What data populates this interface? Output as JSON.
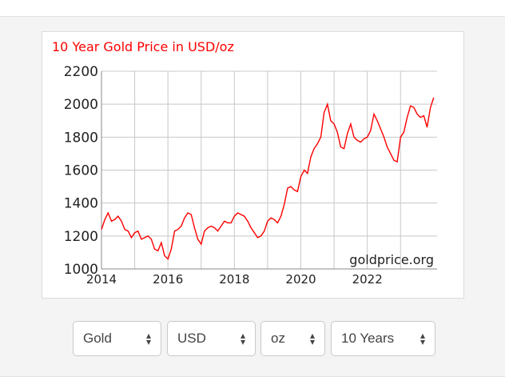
{
  "chart_data": {
    "type": "line",
    "title": "10 Year Gold Price in USD/oz",
    "watermark": "goldprice.org",
    "xlabel": "",
    "ylabel": "",
    "xlim": [
      2014,
      2024.1
    ],
    "ylim": [
      1000,
      2200
    ],
    "x_ticks": [
      "2014",
      "2016",
      "2018",
      "2020",
      "2022"
    ],
    "x_tick_values": [
      2014,
      2016,
      2018,
      2020,
      2022
    ],
    "y_ticks": [
      "1000",
      "1200",
      "1400",
      "1600",
      "1800",
      "2000",
      "2200"
    ],
    "y_tick_values": [
      1000,
      1200,
      1400,
      1600,
      1800,
      2000,
      2200
    ],
    "grid": true,
    "line_color": "#ff0000",
    "series": [
      {
        "x": [
          2014.0,
          2014.1,
          2014.2,
          2014.3,
          2014.4,
          2014.5,
          2014.6,
          2014.7,
          2014.8,
          2014.9,
          2015.0,
          2015.1,
          2015.2,
          2015.3,
          2015.4,
          2015.5,
          2015.6,
          2015.7,
          2015.8,
          2015.9,
          2016.0,
          2016.1,
          2016.2,
          2016.3,
          2016.4,
          2016.5,
          2016.6,
          2016.7,
          2016.8,
          2016.9,
          2017.0,
          2017.1,
          2017.2,
          2017.3,
          2017.4,
          2017.5,
          2017.6,
          2017.7,
          2017.8,
          2017.9,
          2018.0,
          2018.1,
          2018.2,
          2018.3,
          2018.4,
          2018.5,
          2018.6,
          2018.7,
          2018.8,
          2018.9,
          2019.0,
          2019.1,
          2019.2,
          2019.3,
          2019.4,
          2019.5,
          2019.6,
          2019.7,
          2019.8,
          2019.9,
          2020.0,
          2020.1,
          2020.2,
          2020.3,
          2020.4,
          2020.5,
          2020.6,
          2020.7,
          2020.8,
          2020.9,
          2021.0,
          2021.1,
          2021.2,
          2021.3,
          2021.4,
          2021.5,
          2021.6,
          2021.7,
          2021.8,
          2021.9,
          2022.0,
          2022.1,
          2022.2,
          2022.3,
          2022.4,
          2022.5,
          2022.6,
          2022.7,
          2022.8,
          2022.9,
          2023.0,
          2023.1,
          2023.2,
          2023.3,
          2023.4,
          2023.5,
          2023.6,
          2023.7,
          2023.8,
          2023.9,
          2024.0
        ],
        "y": [
          1240,
          1300,
          1340,
          1290,
          1300,
          1320,
          1290,
          1240,
          1230,
          1190,
          1220,
          1230,
          1180,
          1190,
          1200,
          1180,
          1120,
          1110,
          1160,
          1080,
          1060,
          1120,
          1230,
          1240,
          1260,
          1310,
          1340,
          1330,
          1250,
          1180,
          1150,
          1230,
          1250,
          1260,
          1250,
          1230,
          1260,
          1290,
          1280,
          1280,
          1320,
          1340,
          1330,
          1320,
          1290,
          1250,
          1220,
          1190,
          1200,
          1230,
          1290,
          1310,
          1300,
          1280,
          1320,
          1390,
          1490,
          1500,
          1480,
          1470,
          1560,
          1600,
          1580,
          1680,
          1730,
          1760,
          1800,
          1950,
          2000,
          1900,
          1880,
          1830,
          1740,
          1730,
          1820,
          1880,
          1800,
          1780,
          1770,
          1790,
          1800,
          1840,
          1940,
          1900,
          1850,
          1800,
          1740,
          1700,
          1660,
          1650,
          1800,
          1830,
          1920,
          1990,
          1980,
          1940,
          1920,
          1930,
          1860,
          1980,
          2040
        ]
      }
    ]
  },
  "controls": {
    "metal": "Gold",
    "currency": "USD",
    "unit": "oz",
    "period": "10 Years"
  },
  "icons": {
    "select_caret": "updown-caret-icon"
  }
}
